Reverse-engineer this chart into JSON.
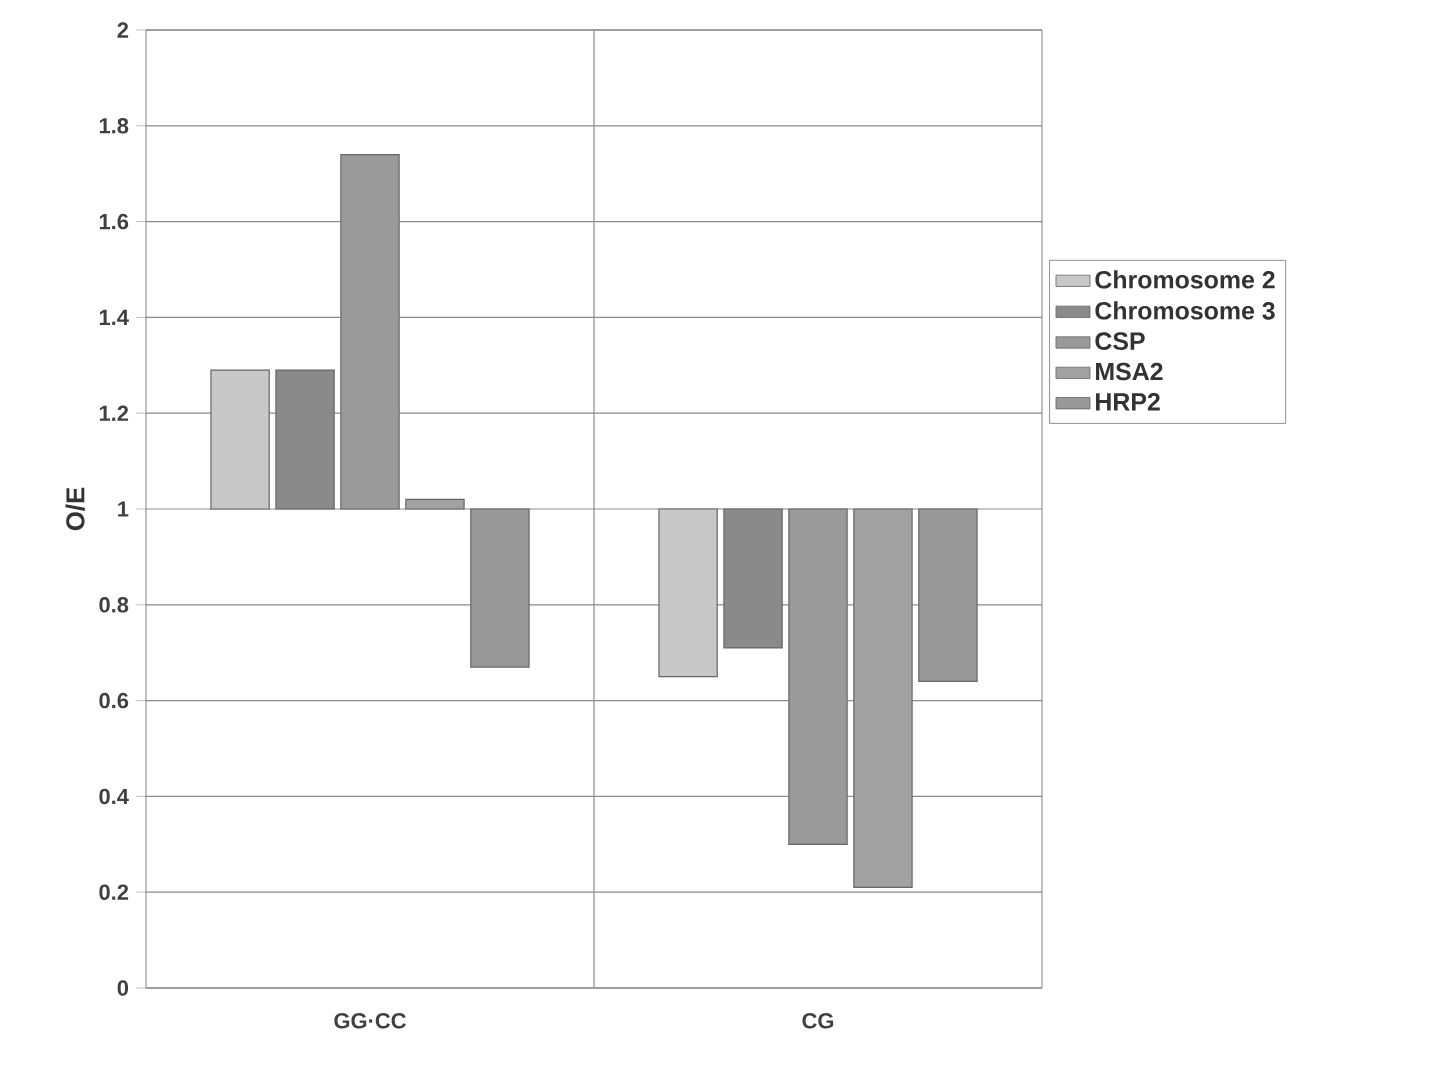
{
  "chart_data": {
    "type": "bar",
    "ylabel": "O/E",
    "categories": [
      "GG·CC",
      "CG"
    ],
    "series": [
      {
        "name": "Chromosome 2",
        "color": "#c8c8c8",
        "base": [
          1,
          1
        ],
        "values": [
          0.29,
          -0.35
        ]
      },
      {
        "name": "Chromosome 3",
        "color": "#8a8a8a",
        "base": [
          1,
          1
        ],
        "values": [
          0.29,
          -0.29
        ]
      },
      {
        "name": "CSP",
        "color": "#9a9a9a",
        "base": [
          1,
          1
        ],
        "values": [
          0.74,
          -0.7
        ]
      },
      {
        "name": "MSA2",
        "color": "#a2a2a2",
        "base": [
          1,
          1
        ],
        "values": [
          0.02,
          -0.79
        ]
      },
      {
        "name": "HRP2",
        "color": "#999999",
        "base": [
          1,
          1
        ],
        "values": [
          -0.33,
          -0.36
        ]
      }
    ],
    "ylim": [
      0,
      2
    ],
    "yticks": [
      0,
      0.2,
      0.4,
      0.6,
      0.8,
      1,
      1.2,
      1.4,
      1.6,
      1.8,
      2
    ],
    "grid": true,
    "legend": "right"
  }
}
